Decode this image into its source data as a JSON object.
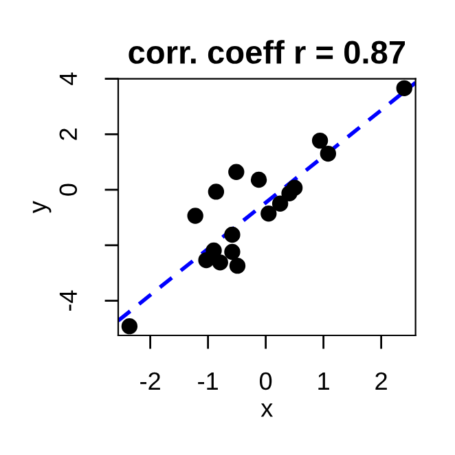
{
  "chart_data": {
    "type": "scatter",
    "title": "corr. coeff r = 0.87",
    "xlabel": "x",
    "ylabel": "y",
    "xlim": [
      -2.555,
      2.595
    ],
    "ylim": [
      -5.25,
      4.0
    ],
    "xticks": [
      -2,
      -1,
      0,
      1,
      2
    ],
    "yticks": [
      -4,
      {
        "value": -2,
        "label": null
      },
      0,
      2,
      4
    ],
    "grid": false,
    "legend": false,
    "series": [
      {
        "color": "#000000",
        "marker": "circle",
        "x": [
          -2.36,
          2.4,
          0.94,
          1.08,
          -0.51,
          -0.12,
          -0.86,
          -1.22,
          0.05,
          0.25,
          0.41,
          0.5,
          -0.58,
          -0.9,
          -0.58,
          -1.03,
          -0.79,
          -0.49
        ],
        "values": [
          -4.92,
          3.66,
          1.77,
          1.3,
          0.64,
          0.36,
          -0.07,
          -0.94,
          -0.86,
          -0.5,
          -0.13,
          0.07,
          -1.62,
          -2.19,
          -2.24,
          -2.54,
          -2.62,
          -2.74
        ]
      },
      {
        "type": "line",
        "color": "#0000ff",
        "line_style": "dashed",
        "marker": "none",
        "x": [
          -2.555,
          2.595
        ],
        "values": [
          -4.72,
          3.86
        ]
      }
    ]
  }
}
